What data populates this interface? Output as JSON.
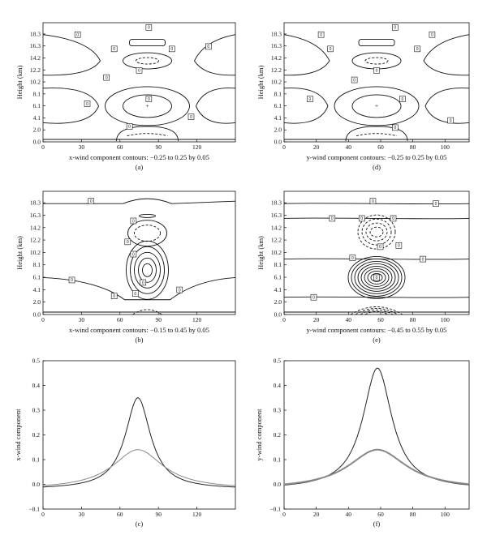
{
  "chart_data": [
    {
      "panel": "(a)",
      "type": "contour",
      "xlabel": "x-wind component contours: −0.25 to 0.25 by 0.05",
      "ylabel": "Height (km)",
      "xlim": [
        0,
        150
      ],
      "x_ticks": [
        "0",
        "30",
        "60",
        "90",
        "120"
      ],
      "y_ticks": [
        "0.0",
        "2.0",
        "4.1",
        "6.1",
        "8.1",
        "10.2",
        "12.2",
        "14.2",
        "16.3",
        "18.3"
      ],
      "contour_labels": [
        "0",
        "0",
        "0",
        "0",
        "0",
        "0",
        "0",
        "0",
        "0",
        "0",
        "0"
      ]
    },
    {
      "panel": "(d)",
      "type": "contour",
      "xlabel": "y-wind component contours: −0.25 to 0.25 by 0.05",
      "ylabel": "Height (km)",
      "xlim": [
        0,
        115
      ],
      "x_ticks": [
        "0",
        "20",
        "40",
        "60",
        "80",
        "100"
      ],
      "y_ticks": [
        "0.0",
        "2.0",
        "4.1",
        "6.1",
        "8.1",
        "10.2",
        "12.2",
        "14.2",
        "16.3",
        "18.3"
      ],
      "contour_labels": [
        "0",
        "0",
        "0",
        "0",
        "0",
        "0",
        "0",
        "0",
        "0",
        "0",
        "0"
      ]
    },
    {
      "panel": "(b)",
      "type": "contour",
      "xlabel": "x-wind component contours: −0.15 to 0.45 by 0.05",
      "ylabel": "Height (km)",
      "xlim": [
        0,
        150
      ],
      "x_ticks": [
        "0",
        "30",
        "60",
        "90",
        "120"
      ],
      "y_ticks": [
        "0.0",
        "2.0",
        "4.1",
        "6.1",
        "8.1",
        "10.2",
        "12.2",
        "14.2",
        "16.3",
        "18.3"
      ],
      "contour_labels": [
        "0",
        "0",
        "0",
        "0",
        "0",
        "0",
        "0",
        "0",
        "0"
      ]
    },
    {
      "panel": "(e)",
      "type": "contour",
      "xlabel": "y-wind component contours: −0.45 to 0.55 by 0.05",
      "ylabel": "Height (km)",
      "xlim": [
        0,
        115
      ],
      "x_ticks": [
        "0",
        "20",
        "40",
        "60",
        "80",
        "100"
      ],
      "y_ticks": [
        "0.0",
        "2.0",
        "4.1",
        "6.1",
        "8.1",
        "10.2",
        "12.2",
        "14.2",
        "16.3",
        "18.3"
      ],
      "contour_labels": [
        "0",
        "0",
        "0",
        "0",
        "0",
        "0",
        "0",
        "0",
        "0",
        "0",
        "0"
      ]
    },
    {
      "panel": "(c)",
      "type": "line",
      "xlabel": "",
      "ylabel": "x-wind component",
      "xlim": [
        0,
        150
      ],
      "ylim": [
        -0.1,
        0.5
      ],
      "x_ticks": [
        "0",
        "30",
        "60",
        "90",
        "120"
      ],
      "y_ticks": [
        "−0.1",
        "0.0",
        "0.1",
        "0.2",
        "0.3",
        "0.4",
        "0.5"
      ],
      "series": [
        {
          "center": 74,
          "width": 12,
          "peak": 0.35,
          "base": -0.02,
          "color": "#222222"
        },
        {
          "center": 74,
          "width": 24,
          "peak": 0.14,
          "base": -0.02,
          "color": "#888888"
        }
      ]
    },
    {
      "panel": "(f)",
      "type": "line",
      "xlabel": "",
      "ylabel": "y-wind component",
      "xlim": [
        0,
        115
      ],
      "ylim": [
        -0.1,
        0.5
      ],
      "x_ticks": [
        "0",
        "20",
        "40",
        "60",
        "80",
        "100"
      ],
      "y_ticks": [
        "−0.1",
        "0.0",
        "0.1",
        "0.2",
        "0.3",
        "0.4",
        "0.5"
      ],
      "series": [
        {
          "center": 58,
          "width": 11,
          "peak": 0.47,
          "base": -0.02,
          "color": "#222222"
        },
        {
          "center": 58,
          "width": 22,
          "peak": 0.14,
          "base": -0.02,
          "color": "#888888"
        }
      ]
    }
  ]
}
